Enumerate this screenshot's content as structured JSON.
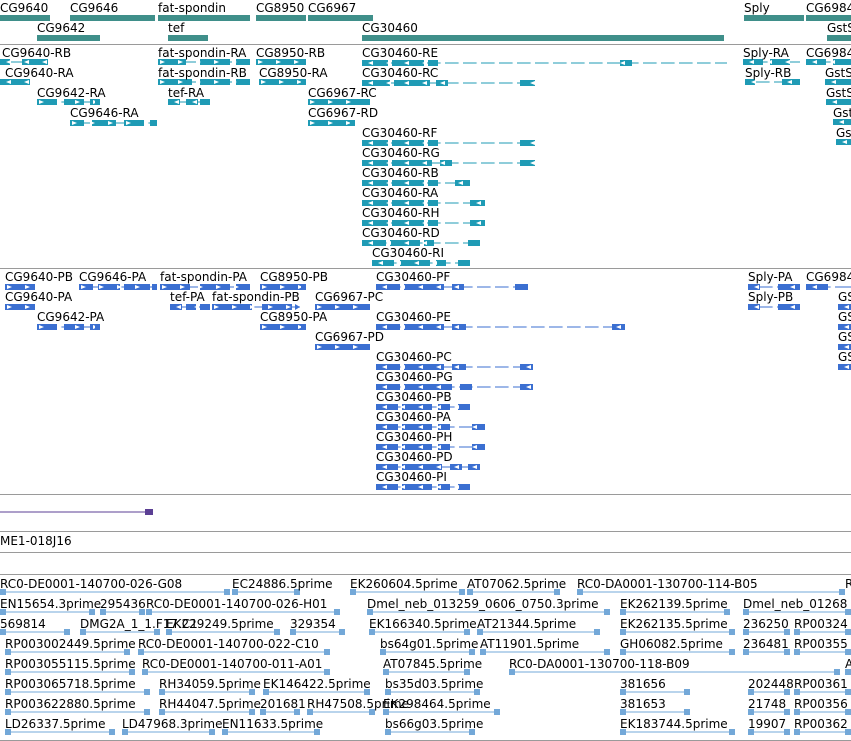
{
  "tracks": {
    "gene_span": {
      "name": "Gene span",
      "color": "#3f8f8a",
      "features": [
        "CG9640",
        "CG9646",
        "fat-spondin",
        "CG8950",
        "CG6967",
        "Sply",
        "CG6984",
        "CG9642",
        "tef",
        "CG30460",
        "GstS"
      ]
    },
    "transcripts": {
      "name": "Transcripts",
      "color": "#1f9bb5",
      "features": [
        "CG9640-RB",
        "fat-spondin-RA",
        "CG8950-RB",
        "CG30460-RE",
        "Sply-RA",
        "CG6984",
        "CG9640-RA",
        "fat-spondin-RB",
        "CG8950-RA",
        "CG30460-RC",
        "Sply-RB",
        "GstS",
        "CG9642-RA",
        "tef-RA",
        "CG6967-RC",
        "GstS",
        "CG9646-RA",
        "CG6967-RD",
        "Gst",
        "CG30460-RF",
        "Gs",
        "CG30460-RG",
        "CG30460-RB",
        "CG30460-RA",
        "CG30460-RH",
        "CG30460-RD",
        "CG30460-RI"
      ]
    },
    "proteins": {
      "name": "Proteins",
      "color": "#3b6fd1",
      "features": [
        "CG9640-PB",
        "CG9646-PA",
        "fat-spondin-PA",
        "CG8950-PB",
        "CG30460-PF",
        "Sply-PA",
        "CG6984",
        "CG9640-PA",
        "tef-PA",
        "fat-spondin-PB",
        "CG6967-PC",
        "Sply-PB",
        "GS",
        "CG9642-PA",
        "CG8950-PA",
        "CG30460-PE",
        "GS",
        "CG6967-PD",
        "GS",
        "GS",
        "CG30460-PC",
        "CG30460-PG",
        "CG30460-PB",
        "CG30460-PA",
        "CG30460-PH",
        "CG30460-PD",
        "CG30460-PI"
      ]
    },
    "bac": {
      "name": "BAC",
      "color": "#5b3f94",
      "features": [
        "ME1-018J16"
      ]
    },
    "ests": {
      "name": "ESTs",
      "color": "#73a8d8",
      "features": [
        "RC0-DE0001-140700-026-G08",
        "EC24886.5prime",
        "EK260604.5prime",
        "AT07062.5prime",
        "RC0-DA0001-130700-114-B05",
        "R",
        "EN15654.3prime",
        "295436",
        "RC0-DE0001-140700-026-H01",
        "Dmel_neb_013259_0606_0750.3prime",
        "EK262139.5prime",
        "Dmel_neb_01268",
        "569814",
        "DMG2A_1_1.F17.C1",
        "EK229249.5prime",
        "329354",
        "EK166340.5prime",
        "AT21344.5prime",
        "EK262135.5prime",
        "236250",
        "RP00324",
        "RP003002449.5prime",
        "RC0-DE0001-140700-022-C10",
        "bs64g01.5prime",
        "AT11901.5prime",
        "GH06082.5prime",
        "236481",
        "RP00355",
        "RP003055115.5prime",
        "RC0-DE0001-140700-011-A01",
        "AT07845.5prime",
        "RC0-DA0001-130700-118-B09",
        "A",
        "RP003065718.5prime",
        "RH34059.5prime",
        "EK146422.5prime",
        "bs35d03.5prime",
        "381656",
        "202448",
        "RP00361",
        "RP003622880.5prime",
        "RH44047.5prime",
        "201681",
        "RH47508.5prime",
        "EK298464.5prime",
        "381653",
        "21748",
        "RP00356",
        "LD26337.5prime",
        "LD47968.3prime",
        "EN11633.5prime",
        "bs66g03.5prime",
        "EK183744.5prime",
        "19907",
        "RP00362"
      ]
    }
  }
}
